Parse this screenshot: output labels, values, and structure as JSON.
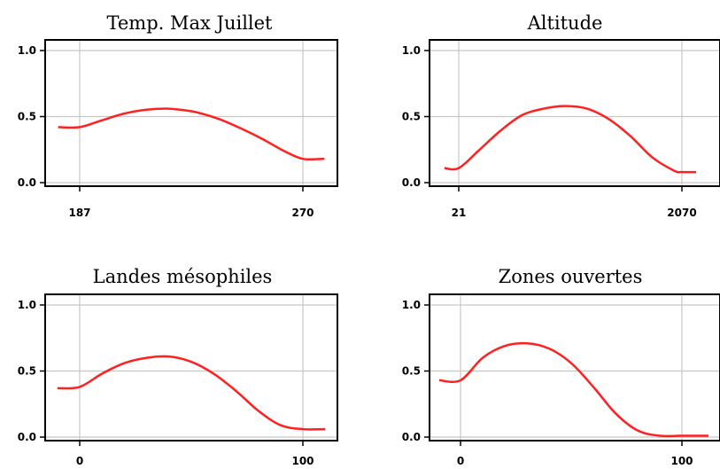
{
  "chart_data": [
    {
      "type": "line",
      "title": "Temp. Max Juillet",
      "xlabel": "",
      "ylabel": "",
      "x_tick_labels": [
        "187",
        "270"
      ],
      "x_range": [
        187,
        270
      ],
      "ylim": [
        0,
        1
      ],
      "y_ticks": [
        "0.0",
        "0.5",
        "1.0"
      ],
      "grid": true,
      "line_color": "#ff2020",
      "series": [
        {
          "x": [
            179,
            187,
            195,
            203,
            211,
            219,
            225,
            231,
            239,
            247,
            255,
            263,
            270,
            278
          ],
          "y": [
            0.42,
            0.42,
            0.47,
            0.52,
            0.55,
            0.56,
            0.55,
            0.53,
            0.48,
            0.41,
            0.33,
            0.24,
            0.18,
            0.18
          ]
        }
      ]
    },
    {
      "type": "line",
      "title": "Altitude",
      "xlabel": "",
      "ylabel": "",
      "x_tick_labels": [
        "21",
        "2070"
      ],
      "x_range": [
        21,
        2070
      ],
      "ylim": [
        0,
        1
      ],
      "y_ticks": [
        "0.0",
        "0.5",
        "1.0"
      ],
      "grid": true,
      "line_color": "#ff2020",
      "series": [
        {
          "x": [
            -110,
            21,
            200,
            400,
            600,
            800,
            1000,
            1200,
            1400,
            1600,
            1800,
            2000,
            2070,
            2200
          ],
          "y": [
            0.11,
            0.11,
            0.24,
            0.39,
            0.51,
            0.56,
            0.58,
            0.56,
            0.48,
            0.35,
            0.19,
            0.09,
            0.08,
            0.08
          ]
        }
      ]
    },
    {
      "type": "line",
      "title": "Landes mésophiles",
      "xlabel": "",
      "ylabel": "",
      "x_tick_labels": [
        "0",
        "100"
      ],
      "x_range": [
        0,
        100
      ],
      "ylim": [
        0,
        1
      ],
      "y_ticks": [
        "0.0",
        "0.5",
        "1.0"
      ],
      "grid": true,
      "line_color": "#ff2020",
      "series": [
        {
          "x": [
            -10,
            0,
            10,
            20,
            30,
            40,
            50,
            60,
            70,
            80,
            90,
            100,
            110
          ],
          "y": [
            0.37,
            0.38,
            0.48,
            0.56,
            0.6,
            0.61,
            0.57,
            0.48,
            0.35,
            0.2,
            0.09,
            0.06,
            0.06
          ]
        }
      ]
    },
    {
      "type": "line",
      "title": "Zones ouvertes",
      "xlabel": "",
      "ylabel": "",
      "x_tick_labels": [
        "0",
        "100"
      ],
      "x_range": [
        0,
        100
      ],
      "ylim": [
        0,
        1
      ],
      "y_ticks": [
        "0.0",
        "0.5",
        "1.0"
      ],
      "grid": true,
      "line_color": "#ff2020",
      "series": [
        {
          "x": [
            -10,
            0,
            10,
            20,
            30,
            40,
            50,
            60,
            70,
            80,
            90,
            100,
            112
          ],
          "y": [
            0.43,
            0.43,
            0.6,
            0.69,
            0.71,
            0.67,
            0.56,
            0.38,
            0.18,
            0.05,
            0.01,
            0.01,
            0.01
          ]
        }
      ]
    }
  ]
}
